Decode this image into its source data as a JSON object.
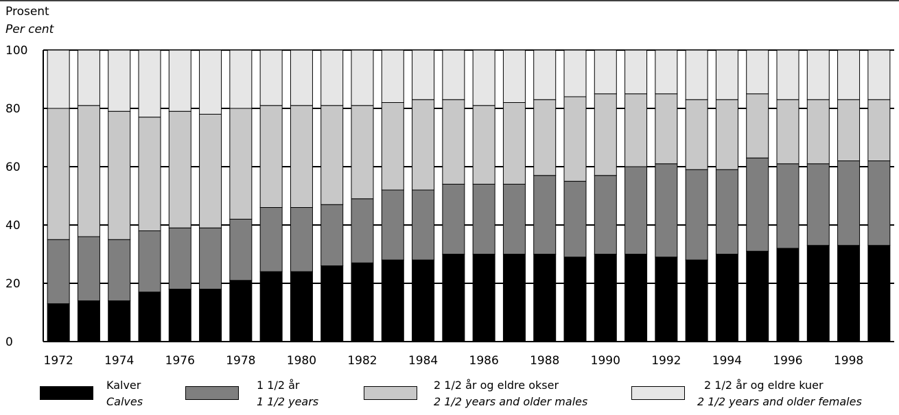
{
  "chart_data": {
    "type": "bar",
    "stacked": true,
    "ylabel": "Prosent",
    "ylabel_en": "Per cent",
    "ylim": [
      0,
      100
    ],
    "yticks": [
      0,
      20,
      40,
      60,
      80,
      100
    ],
    "grid": true,
    "categories": [
      1972,
      1973,
      1974,
      1975,
      1976,
      1977,
      1978,
      1979,
      1980,
      1981,
      1982,
      1983,
      1984,
      1985,
      1986,
      1987,
      1988,
      1989,
      1990,
      1991,
      1992,
      1993,
      1994,
      1995,
      1996,
      1997,
      1998,
      1999
    ],
    "xtick_labels": [
      "1972",
      "1974",
      "1976",
      "1978",
      "1980",
      "1982",
      "1984",
      "1986",
      "1988",
      "1990",
      "1992",
      "1994",
      "1996",
      "1998"
    ],
    "series": [
      {
        "name": "Kalver",
        "name_en": "Calves",
        "color": "#000000",
        "values": [
          13,
          14,
          14,
          17,
          18,
          18,
          21,
          24,
          24,
          26,
          27,
          28,
          28,
          30,
          30,
          30,
          30,
          29,
          30,
          30,
          29,
          28,
          30,
          31,
          32,
          33,
          33,
          33
        ]
      },
      {
        "name": "1 1/2 år",
        "name_en": "1 1/2 years",
        "color": "#7f7f7f",
        "values": [
          22,
          22,
          21,
          21,
          21,
          21,
          21,
          22,
          22,
          21,
          22,
          24,
          24,
          24,
          24,
          24,
          27,
          26,
          27,
          30,
          32,
          31,
          29,
          32,
          29,
          28,
          29,
          29
        ]
      },
      {
        "name": "2 1/2 år og eldre okser",
        "name_en": "2 1/2 years and older males",
        "color": "#c8c8c8",
        "values": [
          45,
          45,
          44,
          39,
          40,
          39,
          38,
          35,
          35,
          34,
          32,
          30,
          31,
          29,
          27,
          28,
          26,
          29,
          28,
          25,
          24,
          24,
          24,
          22,
          22,
          22,
          21,
          21
        ]
      },
      {
        "name": "2 1/2 år og eldre kuer",
        "name_en": "2 1/2 years and older females",
        "color": "#e6e6e6",
        "values": [
          20,
          19,
          21,
          23,
          21,
          22,
          20,
          19,
          19,
          19,
          19,
          18,
          17,
          17,
          19,
          18,
          17,
          16,
          15,
          15,
          15,
          17,
          17,
          15,
          17,
          17,
          17,
          17
        ]
      }
    ]
  }
}
